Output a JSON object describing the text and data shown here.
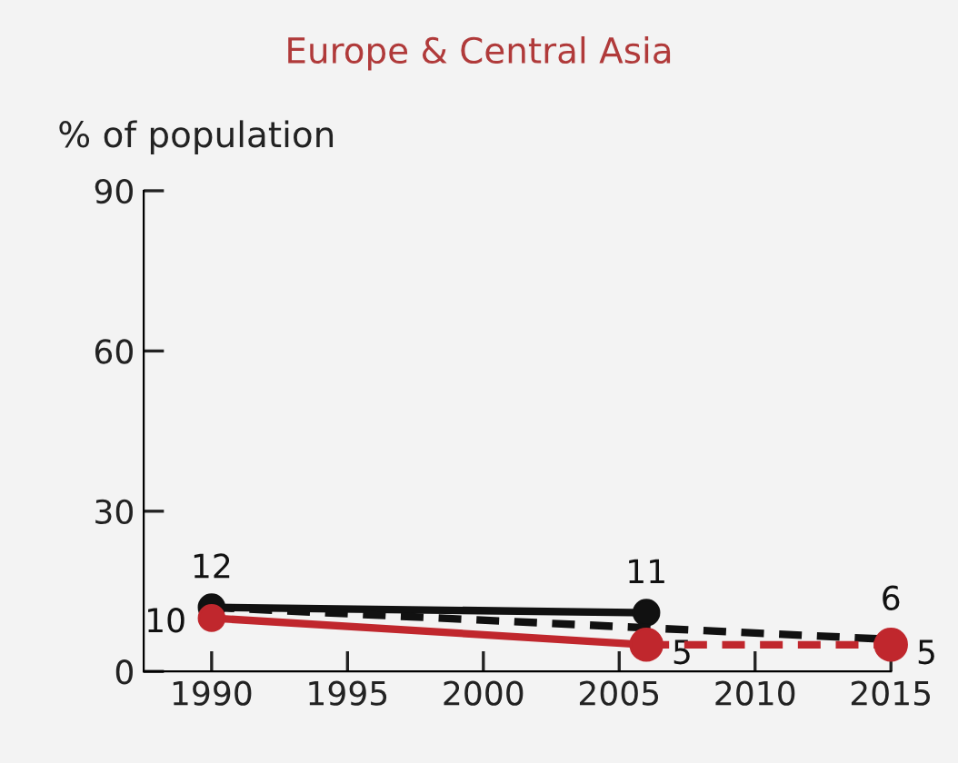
{
  "chart_data": {
    "type": "line",
    "title": "Europe & Central Asia",
    "ylabel": "% of population",
    "xlim": [
      1987.5,
      2015
    ],
    "xticks": [
      1990,
      1995,
      2000,
      2005,
      2010,
      2015
    ],
    "ylim": [
      0,
      90
    ],
    "yticks": [
      0,
      30,
      60,
      90
    ],
    "grid": false,
    "legend": false,
    "series": [
      {
        "color": "#111111",
        "x": [
          1990,
          2006
        ],
        "values": [
          12,
          11
        ],
        "marker": "circle",
        "line_style": "solid",
        "value_labels": [
          "12",
          "11"
        ]
      },
      {
        "color": "#111111",
        "x": [
          1990,
          2015
        ],
        "values": [
          12,
          6
        ],
        "marker": "none",
        "line_style": "dashed",
        "value_labels": [
          null,
          "6"
        ]
      },
      {
        "color": "#c0272d",
        "x": [
          1990,
          2006
        ],
        "values": [
          10,
          5
        ],
        "marker": "circle",
        "line_style": "solid",
        "value_labels": [
          "10",
          "5"
        ]
      },
      {
        "color": "#c0272d",
        "x": [
          2006,
          2015
        ],
        "values": [
          5,
          5
        ],
        "marker": "circle",
        "line_style": "dashed",
        "value_labels": [
          null,
          "5"
        ]
      }
    ]
  }
}
